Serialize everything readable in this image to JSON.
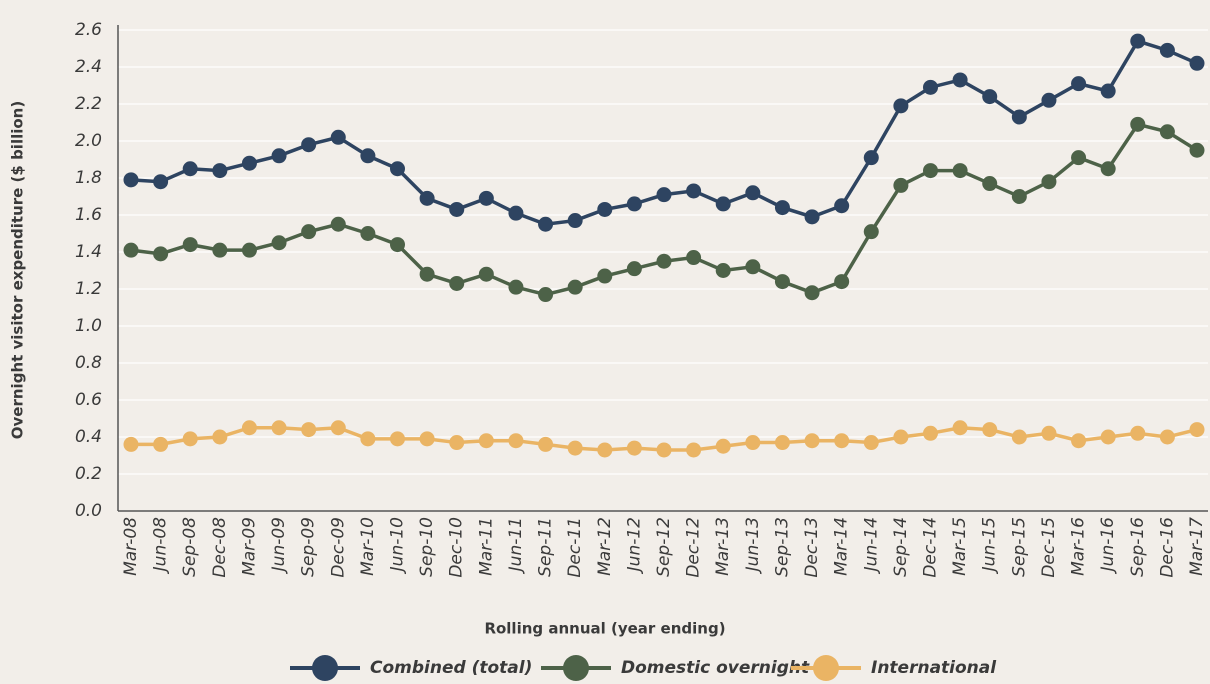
{
  "chart_data": {
    "type": "line",
    "x_label": "Rolling annual (year ending)",
    "y_label": "Overnight visitor expenditure  ($ billion)",
    "categories": [
      "Mar-08",
      "Jun-08",
      "Sep-08",
      "Dec-08",
      "Mar-09",
      "Jun-09",
      "Sep-09",
      "Dec-09",
      "Mar-10",
      "Jun-10",
      "Sep-10",
      "Dec-10",
      "Mar-11",
      "Jun-11",
      "Sep-11",
      "Dec-11",
      "Mar-12",
      "Jun-12",
      "Sep-12",
      "Dec-12",
      "Mar-13",
      "Jun-13",
      "Sep-13",
      "Dec-13",
      "Mar-14",
      "Jun-14",
      "Sep-14",
      "Dec-14",
      "Mar-15",
      "Jun-15",
      "Sep-15",
      "Dec-15",
      "Mar-16",
      "Jun-16",
      "Sep-16",
      "Dec-16",
      "Mar-17"
    ],
    "series": [
      {
        "name": "Combined (total)",
        "color": "#2e4461",
        "values": [
          1.79,
          1.78,
          1.85,
          1.84,
          1.88,
          1.92,
          1.98,
          2.02,
          1.92,
          1.85,
          1.69,
          1.63,
          1.69,
          1.61,
          1.55,
          1.57,
          1.63,
          1.66,
          1.71,
          1.73,
          1.66,
          1.72,
          1.64,
          1.59,
          1.65,
          1.91,
          2.19,
          2.29,
          2.33,
          2.24,
          2.13,
          2.22,
          2.31,
          2.27,
          2.54,
          2.49,
          2.42
        ]
      },
      {
        "name": "Domestic overnight",
        "color": "#4d6248",
        "values": [
          1.41,
          1.39,
          1.44,
          1.41,
          1.41,
          1.45,
          1.51,
          1.55,
          1.5,
          1.44,
          1.28,
          1.23,
          1.28,
          1.21,
          1.17,
          1.21,
          1.27,
          1.31,
          1.35,
          1.37,
          1.3,
          1.32,
          1.24,
          1.18,
          1.24,
          1.51,
          1.76,
          1.84,
          1.84,
          1.77,
          1.7,
          1.78,
          1.91,
          1.85,
          2.09,
          2.05,
          1.95
        ]
      },
      {
        "name": "International",
        "color": "#eab464",
        "values": [
          0.36,
          0.36,
          0.39,
          0.4,
          0.45,
          0.45,
          0.44,
          0.45,
          0.39,
          0.39,
          0.39,
          0.37,
          0.38,
          0.38,
          0.36,
          0.34,
          0.33,
          0.34,
          0.33,
          0.33,
          0.35,
          0.37,
          0.37,
          0.38,
          0.38,
          0.37,
          0.4,
          0.42,
          0.45,
          0.44,
          0.4,
          0.42,
          0.38,
          0.4,
          0.42,
          0.4,
          0.44
        ]
      }
    ],
    "ylim": [
      0,
      2.6
    ],
    "yticks": [
      {
        "value": 0,
        "label": "0.0"
      },
      0.2,
      0.4,
      0.6,
      0.8,
      {
        "value": 1,
        "label": "1.0"
      },
      1.2,
      1.4,
      1.6,
      1.8,
      {
        "value": 2,
        "label": "2.0"
      },
      2.2,
      2.4,
      2.6
    ],
    "grid": true,
    "legend": "bottom"
  }
}
